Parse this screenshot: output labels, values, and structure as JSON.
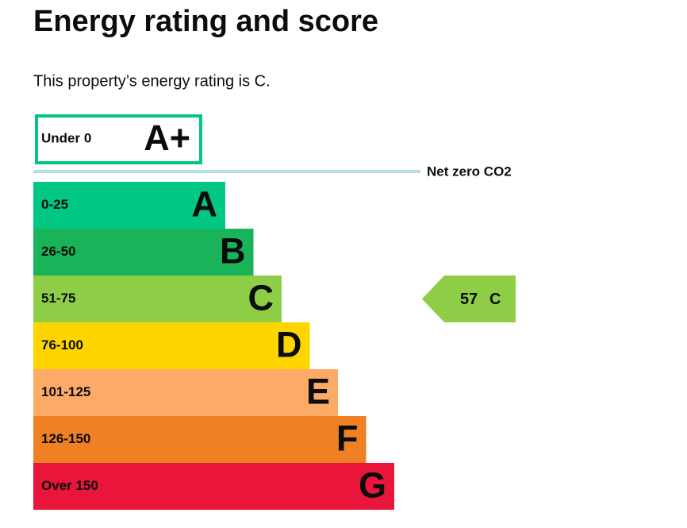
{
  "heading": "Energy rating and score",
  "intro": "This property’s energy rating is C.",
  "top_band": {
    "range": "Under 0",
    "letter": "A+",
    "color": "#00c781"
  },
  "net_zero": {
    "label": "Net zero CO2",
    "color": "#b6dcea"
  },
  "bands": [
    {
      "range": "0-25",
      "letter": "A",
      "color": "#00c781"
    },
    {
      "range": "26-50",
      "letter": "B",
      "color": "#19b459"
    },
    {
      "range": "51-75",
      "letter": "C",
      "color": "#8dce46"
    },
    {
      "range": "76-100",
      "letter": "D",
      "color": "#ffd500"
    },
    {
      "range": "101-125",
      "letter": "E",
      "color": "#fcaa65"
    },
    {
      "range": "126-150",
      "letter": "F",
      "color": "#ef8023"
    },
    {
      "range": "Over 150",
      "letter": "G",
      "color": "#e9153b"
    }
  ],
  "current": {
    "score": 57,
    "letter": "C"
  }
}
